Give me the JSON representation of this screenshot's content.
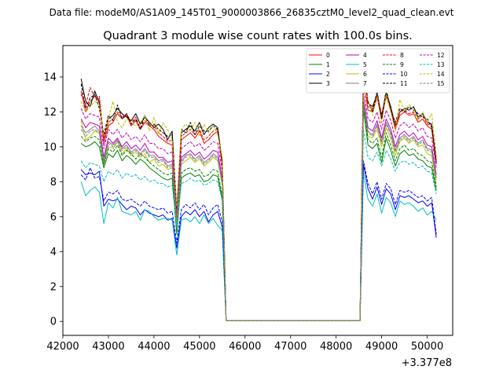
{
  "chart_data": {
    "type": "line",
    "suptitle": "Data file: modeM0/AS1A09_145T01_9000003866_26835cztM0_level2_quad_clean.evt",
    "title": "Quadrant 3 module wise count rates with 100.0s bins.",
    "xlabel": "",
    "ylabel": "",
    "x_offset_label": "+3.377e8",
    "xlim": [
      42000,
      50560
    ],
    "ylim": [
      -0.8,
      15.8
    ],
    "xticks": [
      42000,
      43000,
      44000,
      45000,
      46000,
      47000,
      48000,
      49000,
      50000
    ],
    "yticks": [
      0,
      2,
      4,
      6,
      8,
      10,
      12,
      14
    ],
    "legend": {
      "placement": "top-right",
      "ncol": 4
    },
    "gaps": [
      [
        45585,
        48525
      ]
    ],
    "x": [
      42400,
      42500,
      42600,
      42700,
      42800,
      42900,
      43000,
      43100,
      43200,
      43300,
      43400,
      43500,
      43600,
      43700,
      43800,
      43900,
      44000,
      44100,
      44200,
      44300,
      44400,
      44500,
      44600,
      44700,
      44800,
      44900,
      45000,
      45100,
      45200,
      45300,
      45400,
      45500,
      45585,
      48525,
      48600,
      48700,
      48800,
      48900,
      49000,
      49100,
      49200,
      49300,
      49400,
      49500,
      49600,
      49700,
      49800,
      49900,
      50000,
      50100,
      50200
    ],
    "series": [
      {
        "name": "0",
        "color": "#ff0000",
        "dash": "solid",
        "values": [
          13.2,
          12.0,
          12.6,
          12.9,
          12.7,
          10.2,
          11.2,
          11.4,
          11.9,
          11.6,
          11.8,
          11.2,
          11.5,
          11.0,
          11.4,
          11.2,
          11.0,
          10.6,
          10.4,
          10.2,
          10.1,
          6.2,
          10.4,
          10.6,
          10.8,
          10.5,
          10.9,
          10.2,
          10.4,
          10.7,
          10.9,
          8.9,
          0.05,
          0.05,
          14.1,
          12.1,
          12.0,
          12.8,
          11.6,
          12.9,
          12.1,
          11.0,
          11.8,
          12.0,
          11.8,
          11.9,
          11.4,
          11.6,
          11.2,
          11.0,
          9.0
        ]
      },
      {
        "name": "1",
        "color": "#008000",
        "dash": "solid",
        "values": [
          10.2,
          10.0,
          10.1,
          10.3,
          10.0,
          8.8,
          9.6,
          9.4,
          9.8,
          9.2,
          9.5,
          9.3,
          9.0,
          9.3,
          9.1,
          8.8,
          8.6,
          8.4,
          8.2,
          8.1,
          8.2,
          5.0,
          8.2,
          8.4,
          8.5,
          8.3,
          8.4,
          8.0,
          8.1,
          8.4,
          8.3,
          7.0,
          0.05,
          0.05,
          12.2,
          10.1,
          9.9,
          10.2,
          9.1,
          10.5,
          9.8,
          8.9,
          9.6,
          9.8,
          9.5,
          9.6,
          9.3,
          9.2,
          8.9,
          8.8,
          7.5
        ]
      },
      {
        "name": "2",
        "color": "#0000ff",
        "dash": "solid",
        "values": [
          8.7,
          8.4,
          8.5,
          8.4,
          8.6,
          6.6,
          7.0,
          6.9,
          7.0,
          6.7,
          6.4,
          6.6,
          6.5,
          6.1,
          6.4,
          6.2,
          6.1,
          6.0,
          6.1,
          5.8,
          5.9,
          4.2,
          6.0,
          6.3,
          6.1,
          6.4,
          6.0,
          6.3,
          5.7,
          6.1,
          6.3,
          5.4,
          0.05,
          0.05,
          9.0,
          7.6,
          7.0,
          7.7,
          6.7,
          7.6,
          7.3,
          6.4,
          7.2,
          7.1,
          7.2,
          7.0,
          6.8,
          6.9,
          6.6,
          6.8,
          4.8
        ]
      },
      {
        "name": "3",
        "color": "#000000",
        "dash": "solid",
        "values": [
          13.9,
          12.6,
          12.3,
          13.2,
          12.5,
          10.5,
          11.6,
          11.8,
          12.2,
          11.9,
          11.7,
          11.5,
          11.9,
          11.3,
          11.7,
          11.4,
          11.1,
          11.3,
          11.0,
          10.4,
          10.9,
          6.3,
          10.8,
          11.0,
          11.2,
          10.9,
          11.4,
          10.7,
          11.1,
          11.3,
          11.1,
          9.1,
          0.05,
          0.05,
          14.4,
          12.5,
          12.3,
          13.0,
          11.8,
          13.1,
          12.3,
          11.2,
          12.0,
          12.2,
          12.1,
          12.3,
          11.7,
          11.9,
          11.4,
          11.3,
          9.1
        ]
      },
      {
        "name": "4",
        "color": "#bf00bf",
        "dash": "solid",
        "values": [
          11.6,
          11.1,
          11.4,
          11.3,
          11.2,
          9.4,
          10.5,
          10.2,
          10.5,
          10.0,
          10.3,
          9.9,
          10.1,
          9.8,
          10.2,
          9.7,
          9.7,
          9.4,
          9.4,
          9.1,
          9.2,
          6.1,
          9.4,
          9.6,
          9.8,
          9.5,
          9.7,
          9.3,
          9.5,
          9.8,
          9.7,
          8.2,
          0.05,
          0.05,
          12.9,
          11.1,
          10.9,
          11.5,
          10.5,
          11.6,
          11.0,
          10.0,
          10.7,
          10.9,
          10.6,
          10.8,
          10.4,
          10.6,
          10.1,
          10.0,
          8.4
        ]
      },
      {
        "name": "5",
        "color": "#00bfbf",
        "dash": "solid",
        "values": [
          8.0,
          7.2,
          7.5,
          7.7,
          7.4,
          5.6,
          6.8,
          6.5,
          7.1,
          6.3,
          6.2,
          6.1,
          6.3,
          5.8,
          6.4,
          6.3,
          6.0,
          5.8,
          5.9,
          5.9,
          5.8,
          3.8,
          5.8,
          5.9,
          5.7,
          6.0,
          5.6,
          6.1,
          5.6,
          5.9,
          5.5,
          5.2,
          0.05,
          0.05,
          8.5,
          7.0,
          6.6,
          7.3,
          6.2,
          7.1,
          6.8,
          6.0,
          6.9,
          6.7,
          6.8,
          6.6,
          6.3,
          6.5,
          6.1,
          6.3,
          5.8
        ]
      },
      {
        "name": "6",
        "color": "#bfbf00",
        "dash": "solid",
        "values": [
          11.5,
          10.4,
          10.6,
          10.9,
          10.8,
          9.0,
          10.0,
          9.9,
          10.3,
          9.6,
          9.9,
          9.5,
          9.7,
          9.4,
          9.6,
          9.1,
          9.3,
          8.9,
          9.0,
          8.7,
          8.8,
          5.6,
          9.0,
          9.2,
          9.4,
          9.1,
          9.3,
          8.9,
          9.1,
          9.4,
          9.2,
          7.8,
          0.05,
          0.05,
          12.8,
          10.6,
          10.5,
          11.0,
          10.0,
          11.1,
          10.5,
          9.5,
          10.3,
          10.5,
          10.2,
          10.4,
          10.0,
          10.1,
          9.6,
          9.5,
          7.9
        ]
      },
      {
        "name": "7",
        "color": "#808080",
        "dash": "solid",
        "values": [
          11.2,
          10.8,
          11.0,
          11.2,
          10.9,
          9.2,
          10.3,
          10.1,
          10.4,
          9.9,
          10.1,
          9.7,
          9.9,
          9.6,
          9.9,
          9.5,
          9.5,
          9.2,
          9.3,
          8.9,
          9.0,
          5.9,
          9.2,
          9.5,
          9.6,
          9.3,
          9.5,
          9.1,
          9.3,
          9.6,
          9.4,
          8.0,
          0.05,
          0.05,
          12.6,
          10.9,
          10.7,
          11.3,
          10.3,
          11.4,
          10.8,
          9.8,
          10.5,
          10.7,
          10.4,
          10.6,
          10.2,
          10.4,
          9.9,
          9.8,
          8.2
        ]
      },
      {
        "name": "8",
        "color": "#ff0000",
        "dash": "dashed",
        "values": [
          13.0,
          12.4,
          13.4,
          12.8,
          12.9,
          10.4,
          11.4,
          11.6,
          12.0,
          11.7,
          11.9,
          11.4,
          11.7,
          11.1,
          11.5,
          11.3,
          11.2,
          10.8,
          10.6,
          10.3,
          10.4,
          6.0,
          10.6,
          10.8,
          11.0,
          10.7,
          11.0,
          10.4,
          10.6,
          10.9,
          11.0,
          9.0,
          0.05,
          0.05,
          14.8,
          12.3,
          12.2,
          12.9,
          11.8,
          13.0,
          12.2,
          11.1,
          12.0,
          12.1,
          11.9,
          12.0,
          11.6,
          11.8,
          11.3,
          11.2,
          9.2
        ]
      },
      {
        "name": "9",
        "color": "#008000",
        "dash": "dashed",
        "values": [
          10.6,
          10.3,
          10.5,
          10.6,
          10.4,
          9.0,
          9.9,
          9.7,
          10.1,
          9.5,
          9.8,
          9.6,
          9.3,
          9.6,
          9.4,
          9.1,
          8.9,
          8.7,
          8.5,
          8.4,
          8.5,
          5.2,
          8.5,
          8.7,
          8.8,
          8.6,
          8.7,
          8.3,
          8.4,
          8.7,
          8.6,
          7.2,
          0.05,
          0.05,
          12.5,
          10.4,
          10.2,
          10.5,
          9.4,
          10.8,
          10.1,
          9.2,
          9.9,
          10.1,
          9.8,
          9.9,
          9.6,
          9.5,
          9.2,
          9.1,
          7.7
        ]
      },
      {
        "name": "10",
        "color": "#0000ff",
        "dash": "dashed",
        "values": [
          8.4,
          8.1,
          8.8,
          8.2,
          8.3,
          6.9,
          7.4,
          7.3,
          7.5,
          7.0,
          6.9,
          7.0,
          6.8,
          6.6,
          6.9,
          6.6,
          6.5,
          6.4,
          6.5,
          6.2,
          6.3,
          4.5,
          6.4,
          6.7,
          6.5,
          6.8,
          6.4,
          6.7,
          6.1,
          6.5,
          6.7,
          5.7,
          0.05,
          0.05,
          9.2,
          7.9,
          7.3,
          8.0,
          7.0,
          7.9,
          7.6,
          6.7,
          7.5,
          7.4,
          7.5,
          7.3,
          7.1,
          7.2,
          6.9,
          7.1,
          5.0
        ]
      },
      {
        "name": "11",
        "color": "#000000",
        "dash": "dashed",
        "values": [
          13.6,
          12.2,
          12.8,
          13.0,
          12.2,
          10.7,
          11.8,
          11.5,
          12.4,
          11.6,
          11.9,
          11.3,
          11.6,
          11.0,
          11.8,
          11.2,
          11.3,
          11.0,
          10.8,
          10.6,
          10.7,
          6.4,
          11.0,
          10.8,
          11.4,
          10.7,
          11.2,
          10.9,
          10.9,
          11.2,
          11.0,
          9.2,
          0.05,
          0.05,
          14.7,
          12.6,
          12.0,
          13.2,
          11.6,
          13.3,
          12.1,
          11.4,
          12.2,
          12.0,
          12.3,
          12.1,
          11.9,
          11.7,
          11.6,
          11.1,
          9.3
        ]
      },
      {
        "name": "12",
        "color": "#bf00bf",
        "dash": "dashed",
        "values": [
          12.2,
          11.6,
          11.9,
          11.8,
          11.7,
          9.9,
          11.0,
          10.7,
          11.0,
          10.5,
          10.8,
          10.4,
          10.6,
          10.3,
          10.7,
          10.2,
          10.2,
          9.9,
          9.9,
          9.6,
          9.7,
          6.4,
          9.9,
          10.1,
          10.3,
          10.0,
          10.2,
          9.8,
          10.0,
          10.3,
          10.2,
          8.6,
          0.05,
          0.05,
          13.4,
          11.6,
          11.4,
          12.0,
          11.0,
          12.1,
          11.5,
          10.5,
          11.2,
          11.4,
          11.1,
          11.3,
          10.9,
          11.1,
          10.6,
          10.5,
          8.8
        ]
      },
      {
        "name": "13",
        "color": "#00bfbf",
        "dash": "dashed",
        "values": [
          9.2,
          8.8,
          9.1,
          9.0,
          8.9,
          8.0,
          8.6,
          8.4,
          8.7,
          8.2,
          8.5,
          8.3,
          8.4,
          8.1,
          8.3,
          8.0,
          8.1,
          7.9,
          7.9,
          7.7,
          7.8,
          5.4,
          7.9,
          8.0,
          8.2,
          8.0,
          8.1,
          7.8,
          7.9,
          8.1,
          8.0,
          6.9,
          0.05,
          0.05,
          11.0,
          9.4,
          9.2,
          9.7,
          8.9,
          9.8,
          9.3,
          8.6,
          9.1,
          9.2,
          9.0,
          9.1,
          8.8,
          8.9,
          8.6,
          8.5,
          7.3
        ]
      },
      {
        "name": "14",
        "color": "#bfbf00",
        "dash": "dashed",
        "values": [
          12.6,
          12.0,
          12.3,
          12.6,
          12.4,
          10.6,
          11.6,
          12.6,
          11.4,
          11.1,
          11.6,
          11.4,
          11.2,
          11.4,
          11.8,
          10.9,
          11.7,
          10.7,
          11.4,
          11.0,
          10.4,
          6.6,
          11.0,
          11.3,
          10.9,
          11.4,
          10.6,
          11.3,
          10.8,
          11.2,
          10.7,
          9.4,
          0.05,
          0.05,
          13.6,
          12.7,
          11.8,
          12.9,
          11.3,
          13.0,
          12.0,
          10.9,
          12.7,
          12.1,
          12.4,
          12.2,
          11.5,
          12.0,
          11.4,
          11.9,
          9.5
        ]
      },
      {
        "name": "15",
        "color": "#808080",
        "dash": "dashed",
        "values": [
          11.0,
          10.6,
          10.9,
          11.0,
          10.8,
          9.1,
          10.2,
          10.0,
          10.3,
          9.8,
          10.0,
          9.6,
          9.8,
          9.5,
          9.8,
          9.4,
          9.4,
          9.1,
          9.2,
          8.8,
          8.9,
          5.8,
          9.1,
          9.4,
          9.5,
          9.2,
          9.4,
          9.0,
          9.2,
          9.5,
          9.3,
          7.9,
          0.05,
          0.05,
          12.4,
          10.8,
          10.6,
          11.2,
          10.2,
          11.3,
          10.7,
          9.7,
          10.4,
          10.6,
          10.3,
          10.5,
          10.1,
          10.3,
          9.8,
          9.7,
          8.1
        ]
      }
    ]
  }
}
